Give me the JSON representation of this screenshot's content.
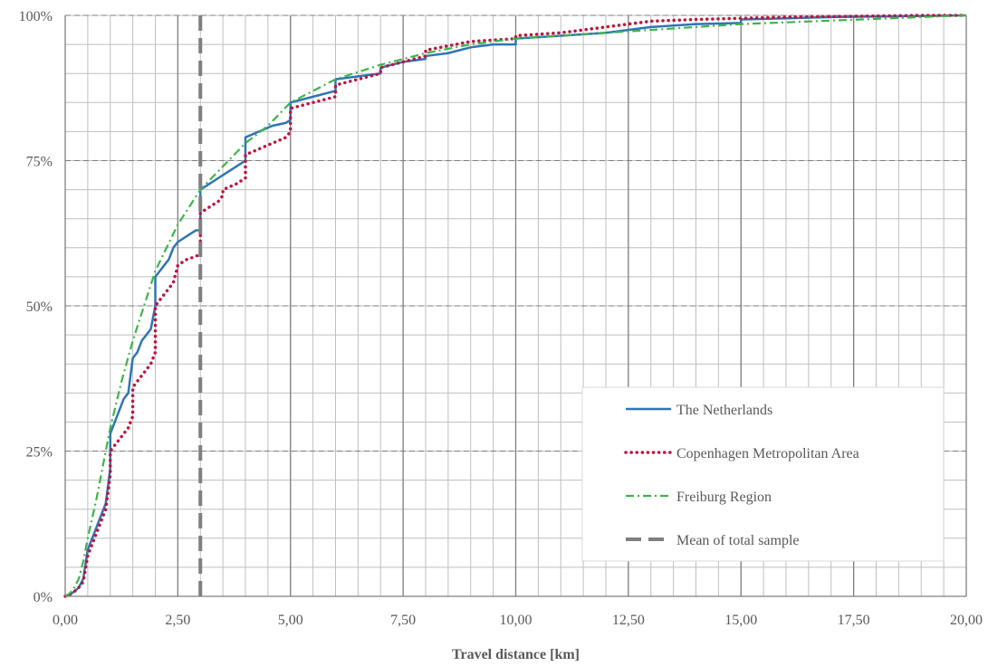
{
  "chart_data": {
    "type": "line",
    "title": "",
    "xlabel": "Travel distance [km]",
    "ylabel": "",
    "xlim": [
      0,
      20
    ],
    "ylim": [
      0,
      100
    ],
    "x_ticks": [
      0,
      2.5,
      5,
      7.5,
      10,
      12.5,
      15,
      17.5,
      20
    ],
    "x_tick_labels": [
      "0,00",
      "2,50",
      "5,00",
      "7,50",
      "10,00",
      "12,50",
      "15,00",
      "17,50",
      "20,00"
    ],
    "y_ticks": [
      0,
      25,
      50,
      75,
      100
    ],
    "y_tick_labels": [
      "0%",
      "25%",
      "50%",
      "75%",
      "100%"
    ],
    "x_minor_grid_step": 0.5,
    "y_minor_grid_step": 5,
    "grid": true,
    "legend_position": "bottom-right",
    "series": [
      {
        "name": "The Netherlands",
        "color": "#2E75B6",
        "style": "solid",
        "x": [
          0,
          0.1,
          0.2,
          0.3,
          0.4,
          0.5,
          0.55,
          0.6,
          0.7,
          0.8,
          0.9,
          1.0,
          1.0,
          1.1,
          1.2,
          1.3,
          1.4,
          1.5,
          1.5,
          1.6,
          1.7,
          1.8,
          1.9,
          2.0,
          2.0,
          2.1,
          2.2,
          2.3,
          2.4,
          2.5,
          2.5,
          2.7,
          2.9,
          3.0,
          3.0,
          3.2,
          3.4,
          3.6,
          3.8,
          4.0,
          4.0,
          4.3,
          4.6,
          4.9,
          5.0,
          5.0,
          5.5,
          6.0,
          6.0,
          6.5,
          7.0,
          7.0,
          7.5,
          8.0,
          8.0,
          8.5,
          9.0,
          9.5,
          10.0,
          10.0,
          11.0,
          12.0,
          13.0,
          14.0,
          15.0,
          15.0,
          16.0,
          17.0,
          18.0,
          19.0,
          20.0
        ],
        "values": [
          0,
          0.3,
          0.8,
          1.5,
          3,
          8,
          9,
          10,
          12,
          14,
          16,
          22,
          28,
          30,
          32,
          34,
          35,
          41,
          41,
          42,
          44,
          45,
          46,
          50,
          55,
          56,
          57,
          58,
          60,
          61,
          61,
          62,
          63,
          63,
          70,
          71,
          72,
          73,
          74,
          75,
          79,
          80,
          81,
          81.5,
          82,
          85,
          86,
          87,
          89,
          89.5,
          90,
          91,
          92,
          92.5,
          93,
          93.5,
          94.5,
          95,
          95,
          96,
          96.5,
          97,
          98,
          98.5,
          98.7,
          99.3,
          99.5,
          99.7,
          99.8,
          99.9,
          100
        ]
      },
      {
        "name": "Copenhagen Metropolitan Area",
        "color": "#C0143C",
        "style": "dotted",
        "x": [
          0,
          0.1,
          0.2,
          0.3,
          0.4,
          0.5,
          0.55,
          0.6,
          0.7,
          0.8,
          0.9,
          1.0,
          1.0,
          1.1,
          1.2,
          1.3,
          1.4,
          1.5,
          1.5,
          1.6,
          1.7,
          1.8,
          1.9,
          2.0,
          2.0,
          2.1,
          2.2,
          2.3,
          2.4,
          2.5,
          2.5,
          2.7,
          2.9,
          3.0,
          3.0,
          3.2,
          3.4,
          3.5,
          3.5,
          3.8,
          4.0,
          4.0,
          4.3,
          4.6,
          4.9,
          5.0,
          5.0,
          5.5,
          6.0,
          6.0,
          6.5,
          7.0,
          7.0,
          7.5,
          8.0,
          8.0,
          9.0,
          10.0,
          10.0,
          11.0,
          12.0,
          13.0,
          14.0,
          15.0,
          16.0,
          17.0,
          18.0,
          19.0,
          20.0
        ],
        "values": [
          0,
          0.3,
          0.8,
          1.5,
          2.5,
          7,
          8,
          9,
          11,
          13,
          15,
          21,
          25,
          26,
          27,
          28,
          29,
          31,
          36,
          37,
          38,
          39,
          40,
          42,
          50,
          51,
          52,
          53,
          54,
          57,
          57,
          58,
          58.5,
          59,
          66,
          67,
          68,
          69,
          70,
          71,
          72,
          76,
          77,
          78,
          79,
          80,
          84,
          85,
          86,
          88,
          89,
          90,
          91,
          92,
          93,
          94,
          95.5,
          96,
          96.5,
          97,
          98,
          99,
          99.3,
          99.5,
          99.7,
          99.8,
          99.9,
          100,
          100
        ]
      },
      {
        "name": "Freiburg Region",
        "color": "#3DB54A",
        "style": "dashdot",
        "x": [
          0,
          0.1,
          0.2,
          0.3,
          0.4,
          0.5,
          0.7,
          1.0,
          1.25,
          1.5,
          1.75,
          2.0,
          2.5,
          3.0,
          3.5,
          4.0,
          4.5,
          5.0,
          6.0,
          7.0,
          8.0,
          9.0,
          10.0,
          11.0,
          12.0,
          13.0,
          14.0,
          15.0,
          16.0,
          17.0,
          18.0,
          19.0,
          20.0
        ],
        "values": [
          0,
          0.5,
          1.5,
          3,
          6,
          10,
          17,
          29,
          37,
          44,
          50,
          56,
          64,
          70,
          74,
          78,
          81,
          85,
          89,
          91.5,
          93.5,
          95,
          96,
          96.5,
          97,
          97.5,
          98,
          98.5,
          98.8,
          99.1,
          99.4,
          99.7,
          100
        ]
      },
      {
        "name": "Mean of total sample",
        "color": "#7F7F7F",
        "style": "dashed",
        "x": [
          3.0,
          3.0
        ],
        "values": [
          0,
          100
        ]
      }
    ]
  }
}
